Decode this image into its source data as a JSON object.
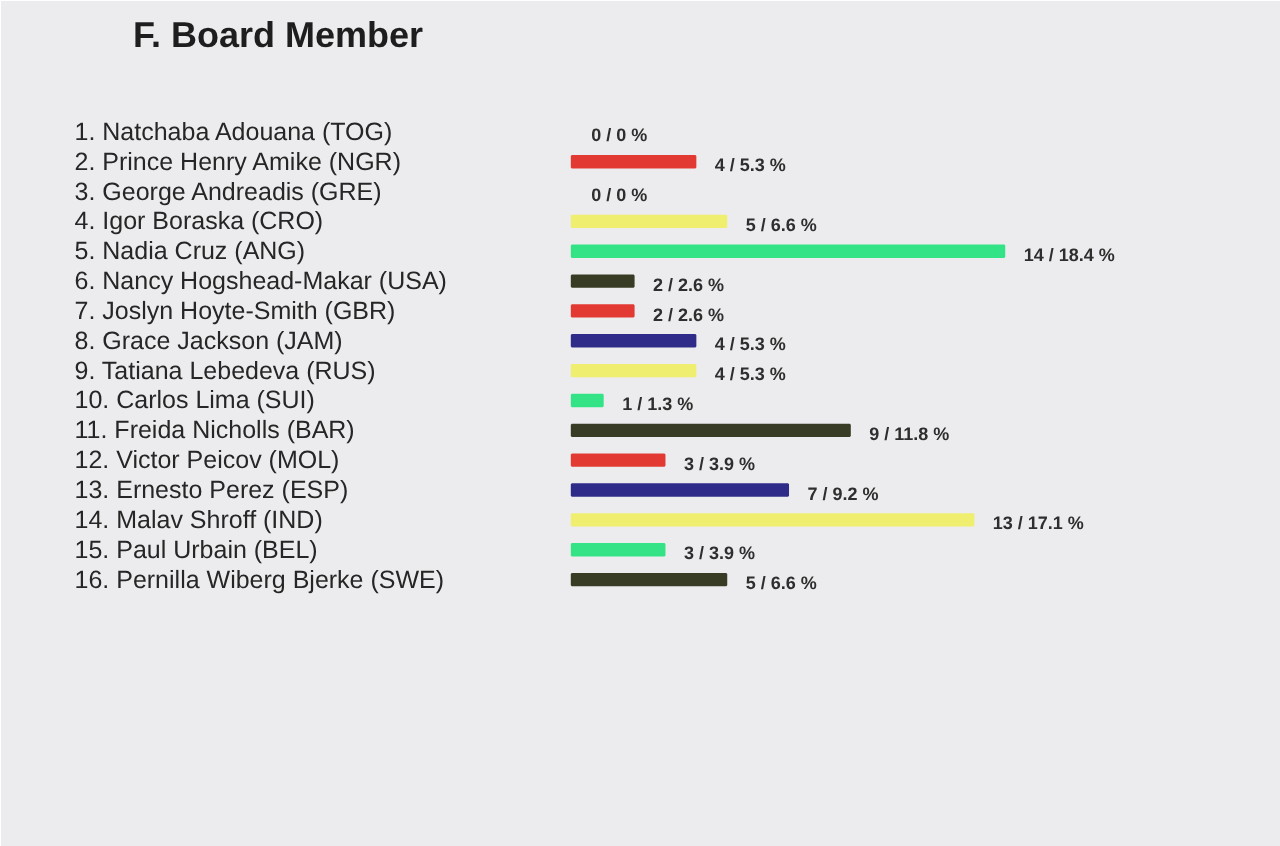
{
  "chart_data": {
    "type": "bar",
    "orientation": "horizontal",
    "title": "F. Board Member",
    "categories": [
      "1. Natchaba Adouana (TOG)",
      "2. Prince Henry Amike (NGR)",
      "3. George Andreadis (GRE)",
      "4. Igor Boraska (CRO)",
      "5. Nadia Cruz (ANG)",
      "6. Nancy Hogshead-Makar (USA)",
      "7. Joslyn Hoyte-Smith (GBR)",
      "8. Grace Jackson (JAM)",
      "9. Tatiana Lebedeva (RUS)",
      "10. Carlos Lima (SUI)",
      "11. Freida Nicholls (BAR)",
      "12. Victor Peicov (MOL)",
      "13. Ernesto Perez (ESP)",
      "14. Malav Shroff (IND)",
      "15. Paul Urbain (BEL)",
      "16. Pernilla Wiberg Bjerke (SWE)"
    ],
    "values": [
      0,
      4,
      0,
      5,
      14,
      2,
      2,
      4,
      4,
      1,
      9,
      3,
      7,
      13,
      3,
      5
    ],
    "colors": [
      null,
      "#e23a33",
      null,
      "#f0ee6e",
      "#33e386",
      "#383c24",
      "#e23a33",
      "#2e2c88",
      "#f0ee6e",
      "#33e386",
      "#383c24",
      "#e23a33",
      "#2e2c88",
      "#f0ee6e",
      "#33e386",
      "#383c24"
    ],
    "value_labels": [
      "0 / 0 %",
      "4 / 5.3 %",
      "0 / 0 %",
      "5 / 6.6 %",
      "14 / 18.4 %",
      "2 / 2.6 %",
      "2 / 2.6 %",
      "4 / 5.3 %",
      "4 / 5.3 %",
      "1 / 1.3 %",
      "9 / 11.8 %",
      "3 / 3.9 %",
      "7 / 9.2 %",
      "13 / 17.1 %",
      "3 / 3.9 %",
      "5 / 6.6 %"
    ]
  }
}
